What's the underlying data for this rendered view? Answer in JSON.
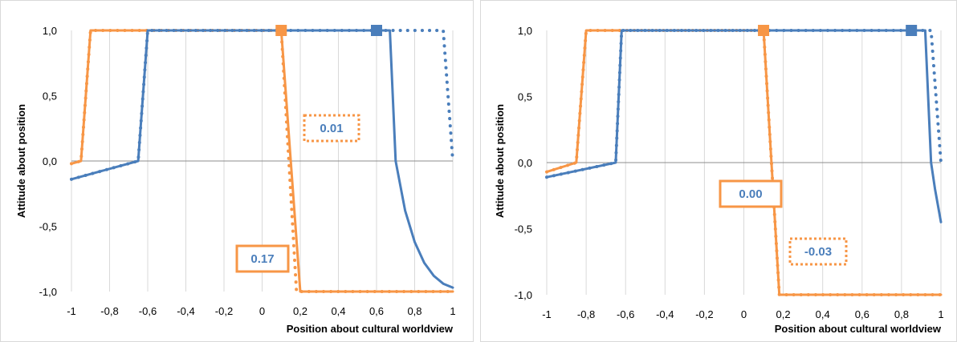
{
  "chart_data": [
    {
      "type": "line",
      "xlabel": "Position about cultural worldview",
      "ylabel": "Attitude about position",
      "xlim": [
        -1,
        1
      ],
      "ylim": [
        -1,
        1
      ],
      "x_ticks": [
        "-1",
        "-0,8",
        "-0,6",
        "-0,4",
        "-0,2",
        "0",
        "0,2",
        "0,4",
        "0,6",
        "0,8",
        "1"
      ],
      "y_ticks": [
        "1,0",
        "0,5",
        "0,0",
        "-0,5",
        "-1,0"
      ],
      "grid": "vertical",
      "legend": "none",
      "colors": {
        "blue": "#4a7ebb",
        "orange": "#f79646"
      },
      "series": [
        {
          "color": "orange",
          "style": "solid",
          "x": [
            -1,
            -0.95,
            -0.9,
            0.1,
            0.2,
            1
          ],
          "y": [
            -0.02,
            0.0,
            1.0,
            1.0,
            -1.0,
            -1.0
          ]
        },
        {
          "color": "orange",
          "style": "dotted",
          "x": [
            -1,
            -0.95,
            -0.9,
            0.1,
            0.18,
            1
          ],
          "y": [
            -0.02,
            0.0,
            1.0,
            1.0,
            -1.0,
            -1.0
          ]
        },
        {
          "color": "blue",
          "style": "solid",
          "x": [
            -1,
            -0.65,
            -0.6,
            0.67,
            0.7,
            0.75,
            0.8,
            0.85,
            0.9,
            0.95,
            1
          ],
          "y": [
            -0.14,
            0.0,
            1.0,
            1.0,
            0.0,
            -0.38,
            -0.62,
            -0.78,
            -0.88,
            -0.94,
            -0.97
          ]
        },
        {
          "color": "blue",
          "style": "dotted",
          "x": [
            -1,
            -0.65,
            -0.6,
            0.95,
            1
          ],
          "y": [
            -0.14,
            0.0,
            1.0,
            1.0,
            0.0
          ]
        }
      ],
      "markers": [
        {
          "color": "orange",
          "x": 0.1,
          "y": 1.0
        },
        {
          "color": "blue",
          "x": 0.6,
          "y": 1.0
        }
      ],
      "annotations": [
        {
          "text": "0.01",
          "box": "dotted"
        },
        {
          "text": "0.17",
          "box": "solid"
        }
      ]
    },
    {
      "type": "line",
      "xlabel": "Position about cultural worldview",
      "ylabel": "Attitude about position",
      "xlim": [
        -1,
        1
      ],
      "ylim": [
        -1,
        1
      ],
      "x_ticks": [
        "-1",
        "-0,8",
        "-0,6",
        "-0,4",
        "-0,2",
        "0",
        "0,2",
        "0,4",
        "0,6",
        "0,8",
        "1"
      ],
      "y_ticks": [
        "1,0",
        "0,5",
        "0,0",
        "-0,5",
        "-1,0"
      ],
      "grid": "vertical",
      "legend": "none",
      "colors": {
        "blue": "#4a7ebb",
        "orange": "#f79646"
      },
      "series": [
        {
          "color": "orange",
          "style": "solid",
          "x": [
            -1,
            -0.85,
            -0.8,
            0.1,
            0.18,
            1
          ],
          "y": [
            -0.07,
            0.0,
            1.0,
            1.0,
            -1.0,
            -1.0
          ]
        },
        {
          "color": "orange",
          "style": "dotted",
          "x": [
            -1,
            -0.85,
            -0.8,
            0.1,
            0.18,
            1
          ],
          "y": [
            -0.07,
            0.0,
            1.0,
            1.0,
            -1.0,
            -1.0
          ]
        },
        {
          "color": "blue",
          "style": "solid",
          "x": [
            -1,
            -0.65,
            -0.62,
            0.92,
            0.95,
            0.97,
            1
          ],
          "y": [
            -0.11,
            0.0,
            1.0,
            1.0,
            0.0,
            -0.2,
            -0.45
          ]
        },
        {
          "color": "blue",
          "style": "dotted",
          "x": [
            -1,
            -0.65,
            -0.62,
            0.95,
            1
          ],
          "y": [
            -0.11,
            0.0,
            1.0,
            1.0,
            0.0
          ]
        }
      ],
      "markers": [
        {
          "color": "orange",
          "x": 0.1,
          "y": 1.0
        },
        {
          "color": "blue",
          "x": 0.85,
          "y": 1.0
        }
      ],
      "annotations": [
        {
          "text": "0.00",
          "box": "solid"
        },
        {
          "text": "-0.03",
          "box": "dotted"
        }
      ]
    }
  ]
}
